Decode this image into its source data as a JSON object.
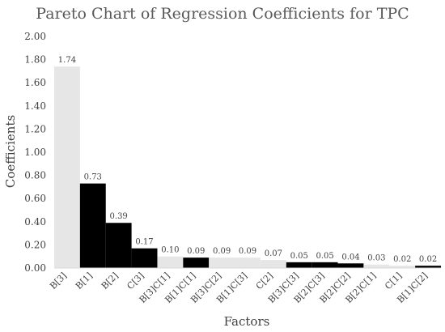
{
  "chart_data": {
    "type": "bar",
    "title": "Pareto Chart of Regression Coefficients for TPC",
    "xlabel": "Factors",
    "ylabel": "Coefficients",
    "ylim": [
      0,
      2.0
    ],
    "yticks": [
      "0.00",
      "0.20",
      "0.40",
      "0.60",
      "0.80",
      "1.00",
      "1.20",
      "1.40",
      "1.60",
      "1.80",
      "2.00"
    ],
    "grid": false,
    "categories": [
      "B[3]",
      "B[1]",
      "B[2]",
      "C[3]",
      "B[3]C[1]",
      "B[1]C[1]",
      "B[3]C[2]",
      "B[1]C[3]",
      "C[2]",
      "B[3]C[3]",
      "B[2]C[3]",
      "B[2]C[2]",
      "B[2]C[1]",
      "C[1]",
      "B[1]C[2]"
    ],
    "values": [
      1.74,
      0.73,
      0.39,
      0.17,
      0.1,
      0.09,
      0.09,
      0.09,
      0.07,
      0.05,
      0.05,
      0.04,
      0.03,
      0.02,
      0.02
    ],
    "data_labels": [
      "1.74",
      "0.73",
      "0.39",
      "0.17",
      "0.10",
      "0.09",
      "0.09",
      "0.09",
      "0.07",
      "0.05",
      "0.05",
      "0.04",
      "0.03",
      "0.02",
      "0.02"
    ],
    "bar_colors": [
      "#e6e6e6",
      "#000000",
      "#000000",
      "#000000",
      "#e6e6e6",
      "#000000",
      "#e6e6e6",
      "#e6e6e6",
      "#e6e6e6",
      "#000000",
      "#000000",
      "#000000",
      "#e6e6e6",
      "#e6e6e6",
      "#000000"
    ],
    "axis_color": "#d9d9d9"
  }
}
